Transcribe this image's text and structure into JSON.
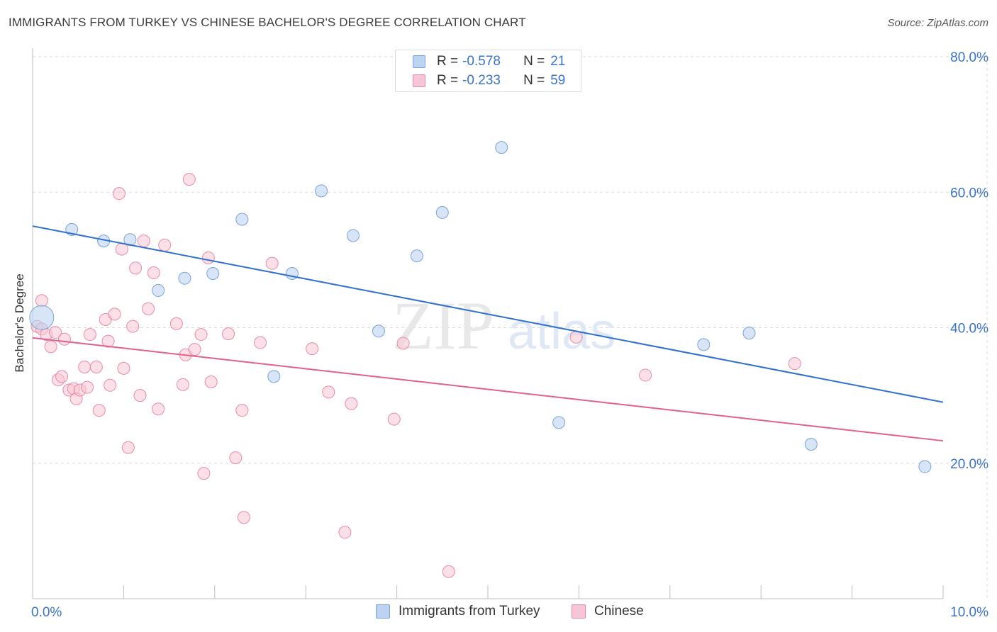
{
  "title": "IMMIGRANTS FROM TURKEY VS CHINESE BACHELOR'S DEGREE CORRELATION CHART",
  "source": "Source: ZipAtlas.com",
  "watermark": {
    "zip": "ZIP",
    "atlas": "atlas"
  },
  "legend": {
    "rows": [
      {
        "r_label": "R =",
        "r_value": "-0.578",
        "n_label": "N =",
        "n_value": "21"
      },
      {
        "r_label": "R =",
        "r_value": "-0.233",
        "n_label": "N =",
        "n_value": "59"
      }
    ]
  },
  "bottom_legend": {
    "turkey": "Immigrants from Turkey",
    "chinese": "Chinese"
  },
  "colors": {
    "turkey_fill": "#bcd4f2",
    "turkey_stroke": "#7aa3d8",
    "turkey_line": "#2f6fcf",
    "chinese_fill": "#f7c6d4",
    "chinese_stroke": "#e98aa8",
    "chinese_line": "#e2608e",
    "axis_text": "#3a74c9",
    "grid": "#d9d9d9"
  },
  "chart_data": {
    "type": "scatter",
    "title": "IMMIGRANTS FROM TURKEY VS CHINESE BACHELOR'S DEGREE CORRELATION CHART",
    "xlabel": "",
    "ylabel": "Bachelor's Degree",
    "xlim": [
      0,
      10
    ],
    "ylim": [
      0,
      80
    ],
    "x_tick_labels": [
      "0.0%",
      "10.0%"
    ],
    "y_ticks": [
      20,
      40,
      60,
      80
    ],
    "y_tick_labels": [
      "20.0%",
      "40.0%",
      "60.0%",
      "80.0%"
    ],
    "series": [
      {
        "name": "Immigrants from Turkey",
        "R": -0.578,
        "N": 21,
        "points": [
          {
            "x": 0.1,
            "y": 41.5,
            "big": true
          },
          {
            "x": 0.43,
            "y": 54.5
          },
          {
            "x": 0.78,
            "y": 52.8
          },
          {
            "x": 1.07,
            "y": 53.0
          },
          {
            "x": 1.38,
            "y": 45.5
          },
          {
            "x": 1.67,
            "y": 47.3
          },
          {
            "x": 1.98,
            "y": 48.0
          },
          {
            "x": 2.3,
            "y": 56.0
          },
          {
            "x": 2.65,
            "y": 32.8
          },
          {
            "x": 2.85,
            "y": 48.0
          },
          {
            "x": 3.17,
            "y": 60.2
          },
          {
            "x": 3.52,
            "y": 53.6
          },
          {
            "x": 3.8,
            "y": 39.5
          },
          {
            "x": 4.22,
            "y": 50.6
          },
          {
            "x": 4.5,
            "y": 57.0
          },
          {
            "x": 5.15,
            "y": 66.6
          },
          {
            "x": 5.78,
            "y": 26.0
          },
          {
            "x": 7.37,
            "y": 37.5
          },
          {
            "x": 7.87,
            "y": 39.2
          },
          {
            "x": 8.55,
            "y": 22.8
          },
          {
            "x": 9.8,
            "y": 19.5
          }
        ],
        "trend": {
          "x0": 0.0,
          "y0": 55.0,
          "x1": 10.0,
          "y1": 29.0
        }
      },
      {
        "name": "Chinese",
        "R": -0.233,
        "N": 59,
        "points": [
          {
            "x": 0.05,
            "y": 40.2
          },
          {
            "x": 0.1,
            "y": 39.8
          },
          {
            "x": 0.1,
            "y": 44.0
          },
          {
            "x": 0.15,
            "y": 39.0
          },
          {
            "x": 0.2,
            "y": 37.2
          },
          {
            "x": 0.25,
            "y": 39.3
          },
          {
            "x": 0.28,
            "y": 32.3
          },
          {
            "x": 0.32,
            "y": 32.8
          },
          {
            "x": 0.35,
            "y": 38.3
          },
          {
            "x": 0.4,
            "y": 30.8
          },
          {
            "x": 0.45,
            "y": 31.0
          },
          {
            "x": 0.48,
            "y": 29.5
          },
          {
            "x": 0.52,
            "y": 30.8
          },
          {
            "x": 0.57,
            "y": 34.2
          },
          {
            "x": 0.6,
            "y": 31.2
          },
          {
            "x": 0.63,
            "y": 39.0
          },
          {
            "x": 0.7,
            "y": 34.2
          },
          {
            "x": 0.73,
            "y": 27.8
          },
          {
            "x": 0.8,
            "y": 41.2
          },
          {
            "x": 0.83,
            "y": 38.0
          },
          {
            "x": 0.85,
            "y": 31.5
          },
          {
            "x": 0.9,
            "y": 42.0
          },
          {
            "x": 0.95,
            "y": 59.8
          },
          {
            "x": 0.98,
            "y": 51.6
          },
          {
            "x": 1.0,
            "y": 34.0
          },
          {
            "x": 1.05,
            "y": 22.3
          },
          {
            "x": 1.1,
            "y": 40.2
          },
          {
            "x": 1.13,
            "y": 48.8
          },
          {
            "x": 1.18,
            "y": 30.0
          },
          {
            "x": 1.22,
            "y": 52.8
          },
          {
            "x": 1.27,
            "y": 42.8
          },
          {
            "x": 1.33,
            "y": 48.1
          },
          {
            "x": 1.38,
            "y": 28.0
          },
          {
            "x": 1.45,
            "y": 52.2
          },
          {
            "x": 1.58,
            "y": 40.6
          },
          {
            "x": 1.65,
            "y": 31.6
          },
          {
            "x": 1.68,
            "y": 36.0
          },
          {
            "x": 1.72,
            "y": 61.9
          },
          {
            "x": 1.78,
            "y": 36.8
          },
          {
            "x": 1.85,
            "y": 39.0
          },
          {
            "x": 1.88,
            "y": 18.5
          },
          {
            "x": 1.93,
            "y": 50.3
          },
          {
            "x": 1.96,
            "y": 32.0
          },
          {
            "x": 2.15,
            "y": 39.1
          },
          {
            "x": 2.23,
            "y": 20.8
          },
          {
            "x": 2.3,
            "y": 27.8
          },
          {
            "x": 2.32,
            "y": 12.0
          },
          {
            "x": 2.5,
            "y": 37.8
          },
          {
            "x": 2.63,
            "y": 49.5
          },
          {
            "x": 3.07,
            "y": 36.9
          },
          {
            "x": 3.25,
            "y": 30.5
          },
          {
            "x": 3.43,
            "y": 9.8
          },
          {
            "x": 3.5,
            "y": 28.8
          },
          {
            "x": 3.97,
            "y": 26.5
          },
          {
            "x": 4.07,
            "y": 37.7
          },
          {
            "x": 4.57,
            "y": 4.0
          },
          {
            "x": 5.97,
            "y": 38.6
          },
          {
            "x": 6.73,
            "y": 33.0
          },
          {
            "x": 8.37,
            "y": 34.7
          }
        ],
        "trend": {
          "x0": 0.0,
          "y0": 38.5,
          "x1": 10.0,
          "y1": 23.3
        }
      }
    ]
  }
}
